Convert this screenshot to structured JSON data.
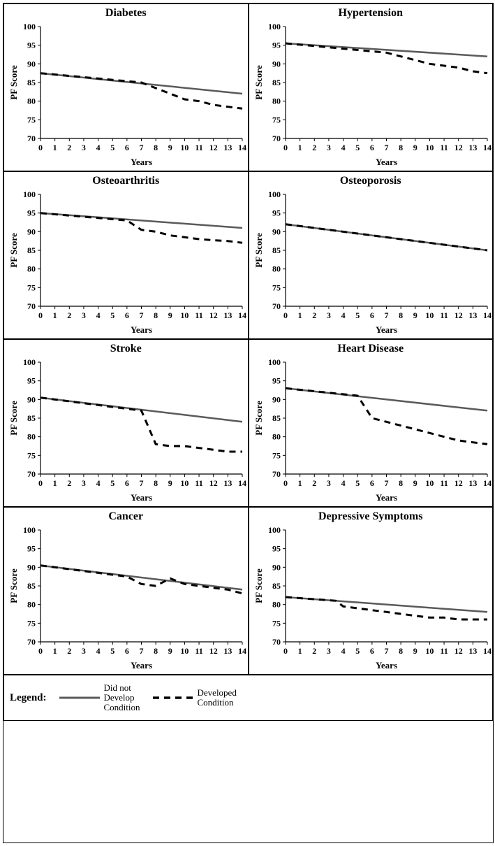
{
  "legend": {
    "title": "Legend:",
    "series": [
      {
        "key": "no_dev",
        "label_line1": "Did not",
        "label_line2": "Develop",
        "label_line3": "Condition"
      },
      {
        "key": "dev",
        "label_line1": "Developed",
        "label_line2": "Condition",
        "label_line3": ""
      }
    ]
  },
  "style": {
    "solid_color": "#5a5a5a",
    "solid_width": 2.5,
    "dash_color": "#000000",
    "dash_width": 3,
    "dash_pattern": "9,7",
    "axis_color": "#000000",
    "axis_width": 1.2,
    "tick_font": 12,
    "title_font": 16,
    "label_font": 13,
    "ylabel": "PF Score",
    "xlabel": "Years"
  },
  "axes": {
    "ylim": [
      70,
      100
    ],
    "ytick_step": 5,
    "xlim": [
      0,
      14
    ],
    "xtick_step": 1
  },
  "panels": [
    {
      "title": "Diabetes",
      "solid": [
        [
          0,
          87.5
        ],
        [
          14,
          82
        ]
      ],
      "dash": [
        [
          0,
          87.5
        ],
        [
          7,
          85
        ],
        [
          8,
          83.5
        ],
        [
          9,
          82
        ],
        [
          10,
          80.5
        ],
        [
          11,
          80
        ],
        [
          12,
          79
        ],
        [
          13,
          78.5
        ],
        [
          14,
          78
        ]
      ]
    },
    {
      "title": "Hypertension",
      "solid": [
        [
          0,
          95.5
        ],
        [
          14,
          92
        ]
      ],
      "dash": [
        [
          0,
          95.5
        ],
        [
          7,
          93
        ],
        [
          8,
          92
        ],
        [
          9,
          91
        ],
        [
          10,
          90
        ],
        [
          11,
          89.5
        ],
        [
          12,
          89
        ],
        [
          13,
          88
        ],
        [
          14,
          87.5
        ]
      ]
    },
    {
      "title": "Osteoarthritis",
      "solid": [
        [
          0,
          95
        ],
        [
          14,
          91
        ]
      ],
      "dash": [
        [
          0,
          95
        ],
        [
          6,
          93
        ],
        [
          7,
          90.5
        ],
        [
          8,
          90
        ],
        [
          9,
          89
        ],
        [
          10,
          88.5
        ],
        [
          11,
          88
        ],
        [
          12,
          87.7
        ],
        [
          13,
          87.5
        ],
        [
          14,
          87
        ]
      ]
    },
    {
      "title": "Osteoporosis",
      "solid": [
        [
          0,
          92
        ],
        [
          14,
          85
        ]
      ],
      "dash": [
        [
          0,
          92
        ],
        [
          14,
          85
        ]
      ]
    },
    {
      "title": "Stroke",
      "solid": [
        [
          0,
          90.5
        ],
        [
          14,
          84
        ]
      ],
      "dash": [
        [
          0,
          90.5
        ],
        [
          7,
          87
        ],
        [
          8,
          78
        ],
        [
          9,
          77.5
        ],
        [
          10,
          77.5
        ],
        [
          11,
          77
        ],
        [
          12,
          76.5
        ],
        [
          13,
          76
        ],
        [
          14,
          76
        ]
      ]
    },
    {
      "title": "Heart Disease",
      "solid": [
        [
          0,
          93
        ],
        [
          14,
          87
        ]
      ],
      "dash": [
        [
          0,
          93
        ],
        [
          5,
          91
        ],
        [
          6,
          85
        ],
        [
          7,
          84
        ],
        [
          8,
          83
        ],
        [
          9,
          82
        ],
        [
          10,
          81
        ],
        [
          11,
          80
        ],
        [
          12,
          79
        ],
        [
          13,
          78.5
        ],
        [
          14,
          78
        ]
      ]
    },
    {
      "title": "Cancer",
      "solid": [
        [
          0,
          90.5
        ],
        [
          14,
          84
        ]
      ],
      "dash": [
        [
          0,
          90.5
        ],
        [
          6,
          87.5
        ],
        [
          7,
          85.5
        ],
        [
          8,
          85
        ],
        [
          9,
          87
        ],
        [
          10,
          85.5
        ],
        [
          11,
          85
        ],
        [
          12,
          84.5
        ],
        [
          13,
          84
        ],
        [
          14,
          83
        ]
      ]
    },
    {
      "title": "Depressive Symptoms",
      "solid": [
        [
          0,
          82
        ],
        [
          14,
          78
        ]
      ],
      "dash": [
        [
          0,
          82
        ],
        [
          3.5,
          81
        ],
        [
          4,
          79.5
        ],
        [
          5,
          79
        ],
        [
          6,
          78.5
        ],
        [
          7,
          78
        ],
        [
          8,
          77.5
        ],
        [
          9,
          77
        ],
        [
          10,
          76.5
        ],
        [
          11,
          76.5
        ],
        [
          12,
          76
        ],
        [
          13,
          76
        ],
        [
          14,
          76
        ]
      ]
    }
  ]
}
